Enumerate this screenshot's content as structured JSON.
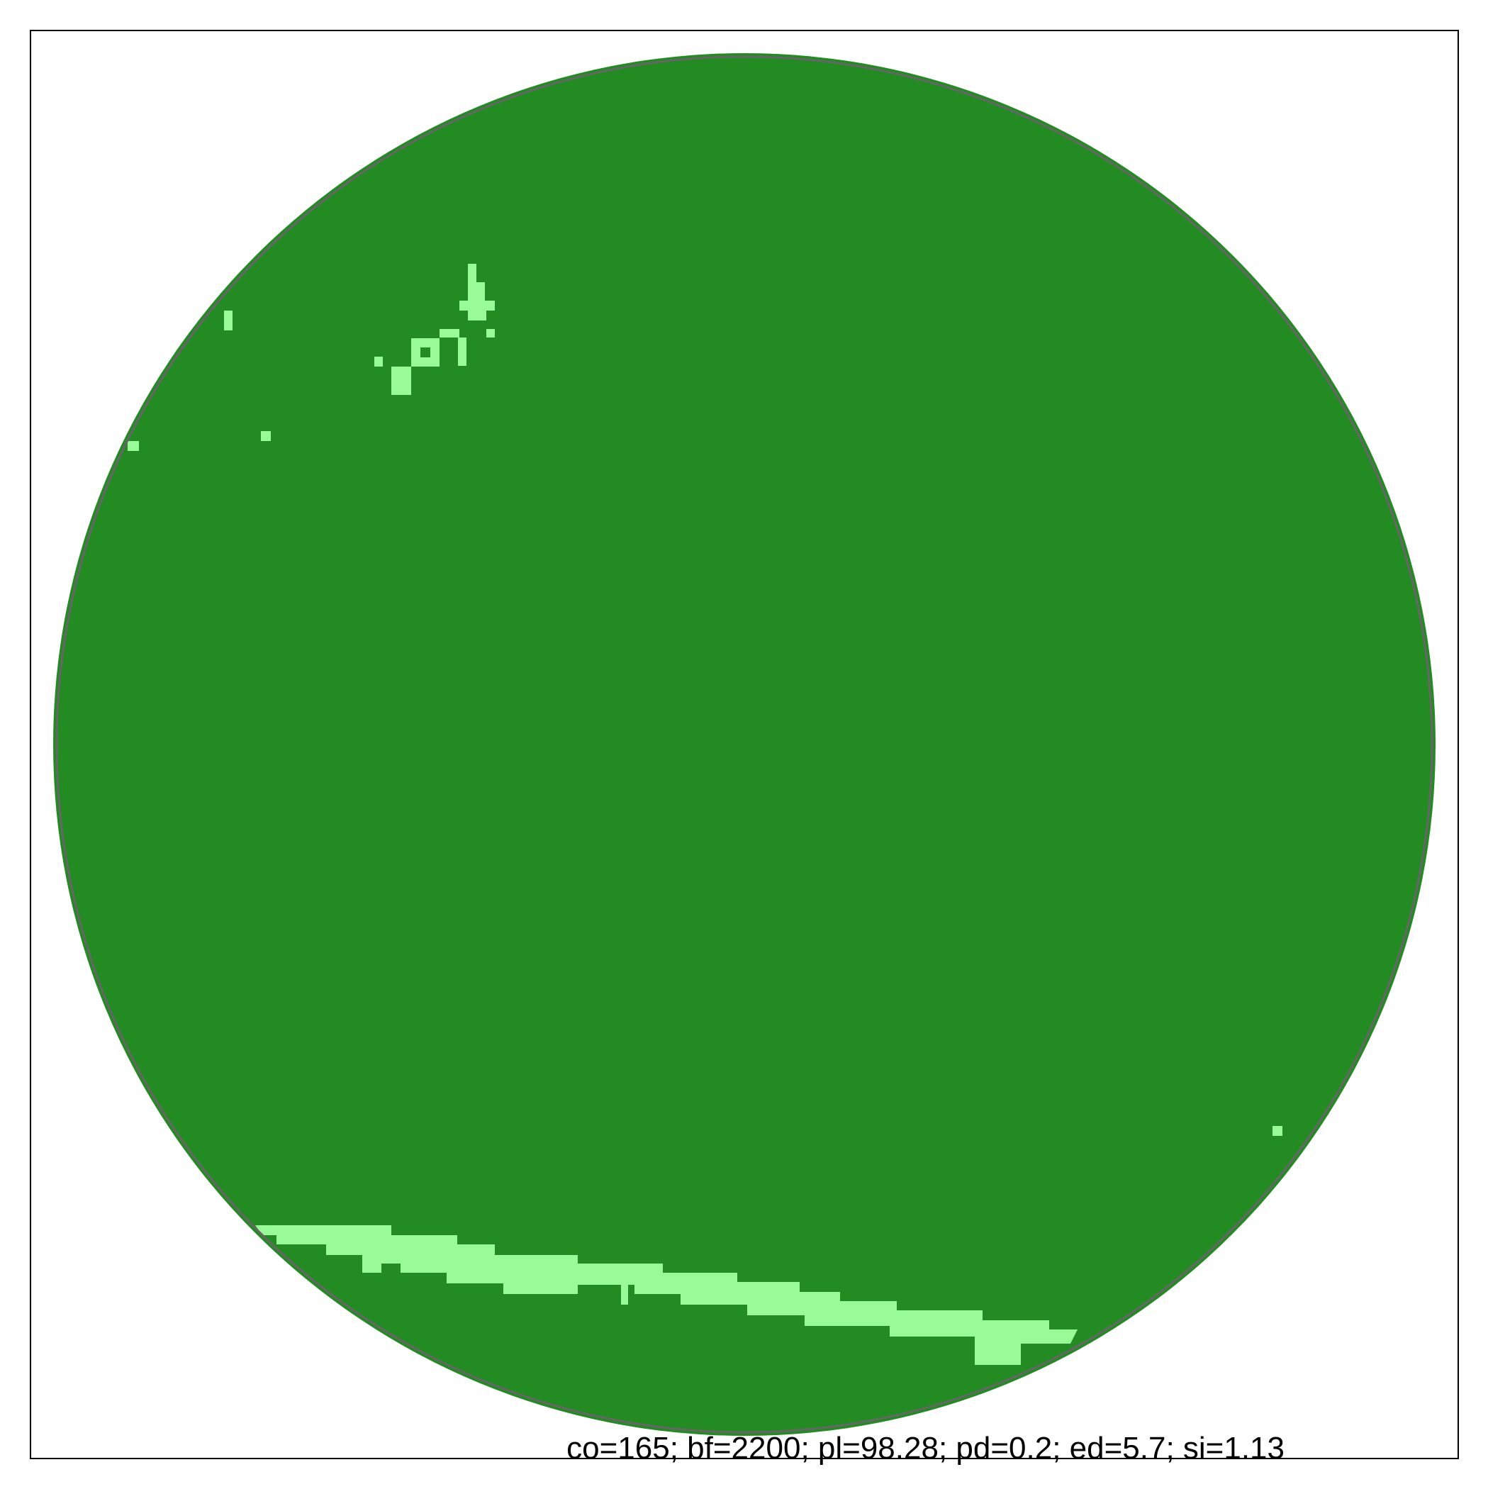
{
  "colors": {
    "background": "#ffffff",
    "frame": "#000000",
    "disc_outline": "#666666",
    "dominant_class": "#228b22",
    "minor_class": "#98fb98"
  },
  "caption": "co=165; bf=2200; pl=98.28; pd=0.2; ed=5.7; si=1.13"
}
